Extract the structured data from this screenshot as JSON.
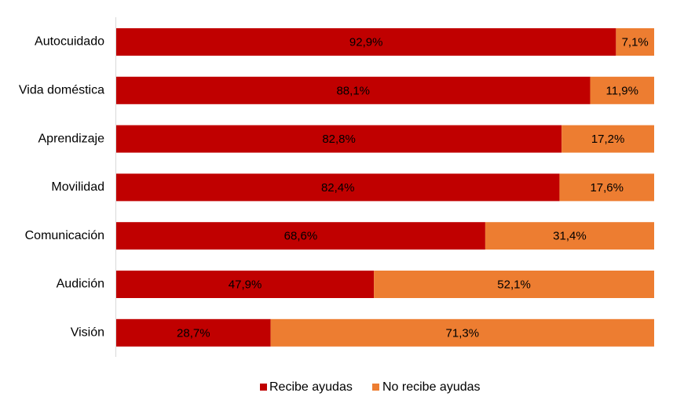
{
  "chart_data": {
    "type": "bar",
    "orientation": "horizontal",
    "stacked": true,
    "categories": [
      "Autocuidado",
      "Vida doméstica",
      "Aprendizaje",
      "Movilidad",
      "Comunicación",
      "Audición",
      "Visión"
    ],
    "series": [
      {
        "name": "Recibe ayudas",
        "values": [
          92.9,
          88.1,
          82.8,
          82.4,
          68.6,
          47.9,
          28.7
        ],
        "labels": [
          "92,9%",
          "88,1%",
          "82,8%",
          "82,4%",
          "68,6%",
          "47,9%",
          "28,7%"
        ],
        "color": "#c00000"
      },
      {
        "name": "No recibe ayudas",
        "values": [
          7.1,
          11.9,
          17.2,
          17.6,
          31.4,
          52.1,
          71.3
        ],
        "labels": [
          "7,1%",
          "11,9%",
          "17,2%",
          "17,6%",
          "31,4%",
          "52,1%",
          "71,3%"
        ],
        "color": "#ed7d31"
      }
    ],
    "xlim": [
      0,
      100
    ],
    "grid": false,
    "legend_position": "bottom"
  }
}
